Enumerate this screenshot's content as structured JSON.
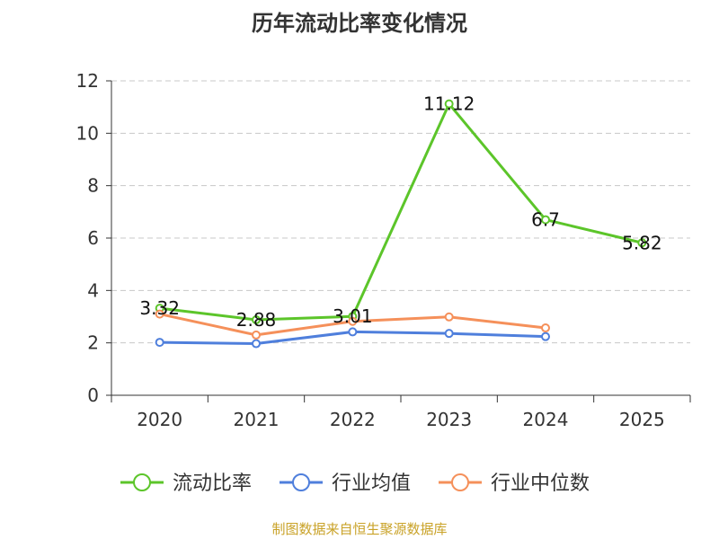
{
  "chart_data": {
    "type": "line",
    "title": "历年流动比率变化情况",
    "categories": [
      "2020",
      "2021",
      "2022",
      "2023",
      "2024",
      "2025"
    ],
    "ylim": [
      0,
      12
    ],
    "yticks": [
      0,
      2,
      4,
      6,
      8,
      10,
      12
    ],
    "grid": true,
    "legend_position": "bottom",
    "series": [
      {
        "name": "流动比率",
        "color": "#5cc52a",
        "values": [
          3.32,
          2.88,
          3.01,
          11.12,
          6.7,
          5.82
        ],
        "labels": [
          "3.32",
          "2.88",
          "3.01",
          "11.12",
          "6.7",
          "5.82"
        ]
      },
      {
        "name": "行业均值",
        "color": "#4f7fdc",
        "values": [
          2.02,
          1.97,
          2.42,
          2.36,
          2.24,
          null
        ]
      },
      {
        "name": "行业中位数",
        "color": "#f5905a",
        "values": [
          3.1,
          2.3,
          2.82,
          2.99,
          2.57,
          null
        ]
      }
    ]
  },
  "source_text": "制图数据来自恒生聚源数据库"
}
